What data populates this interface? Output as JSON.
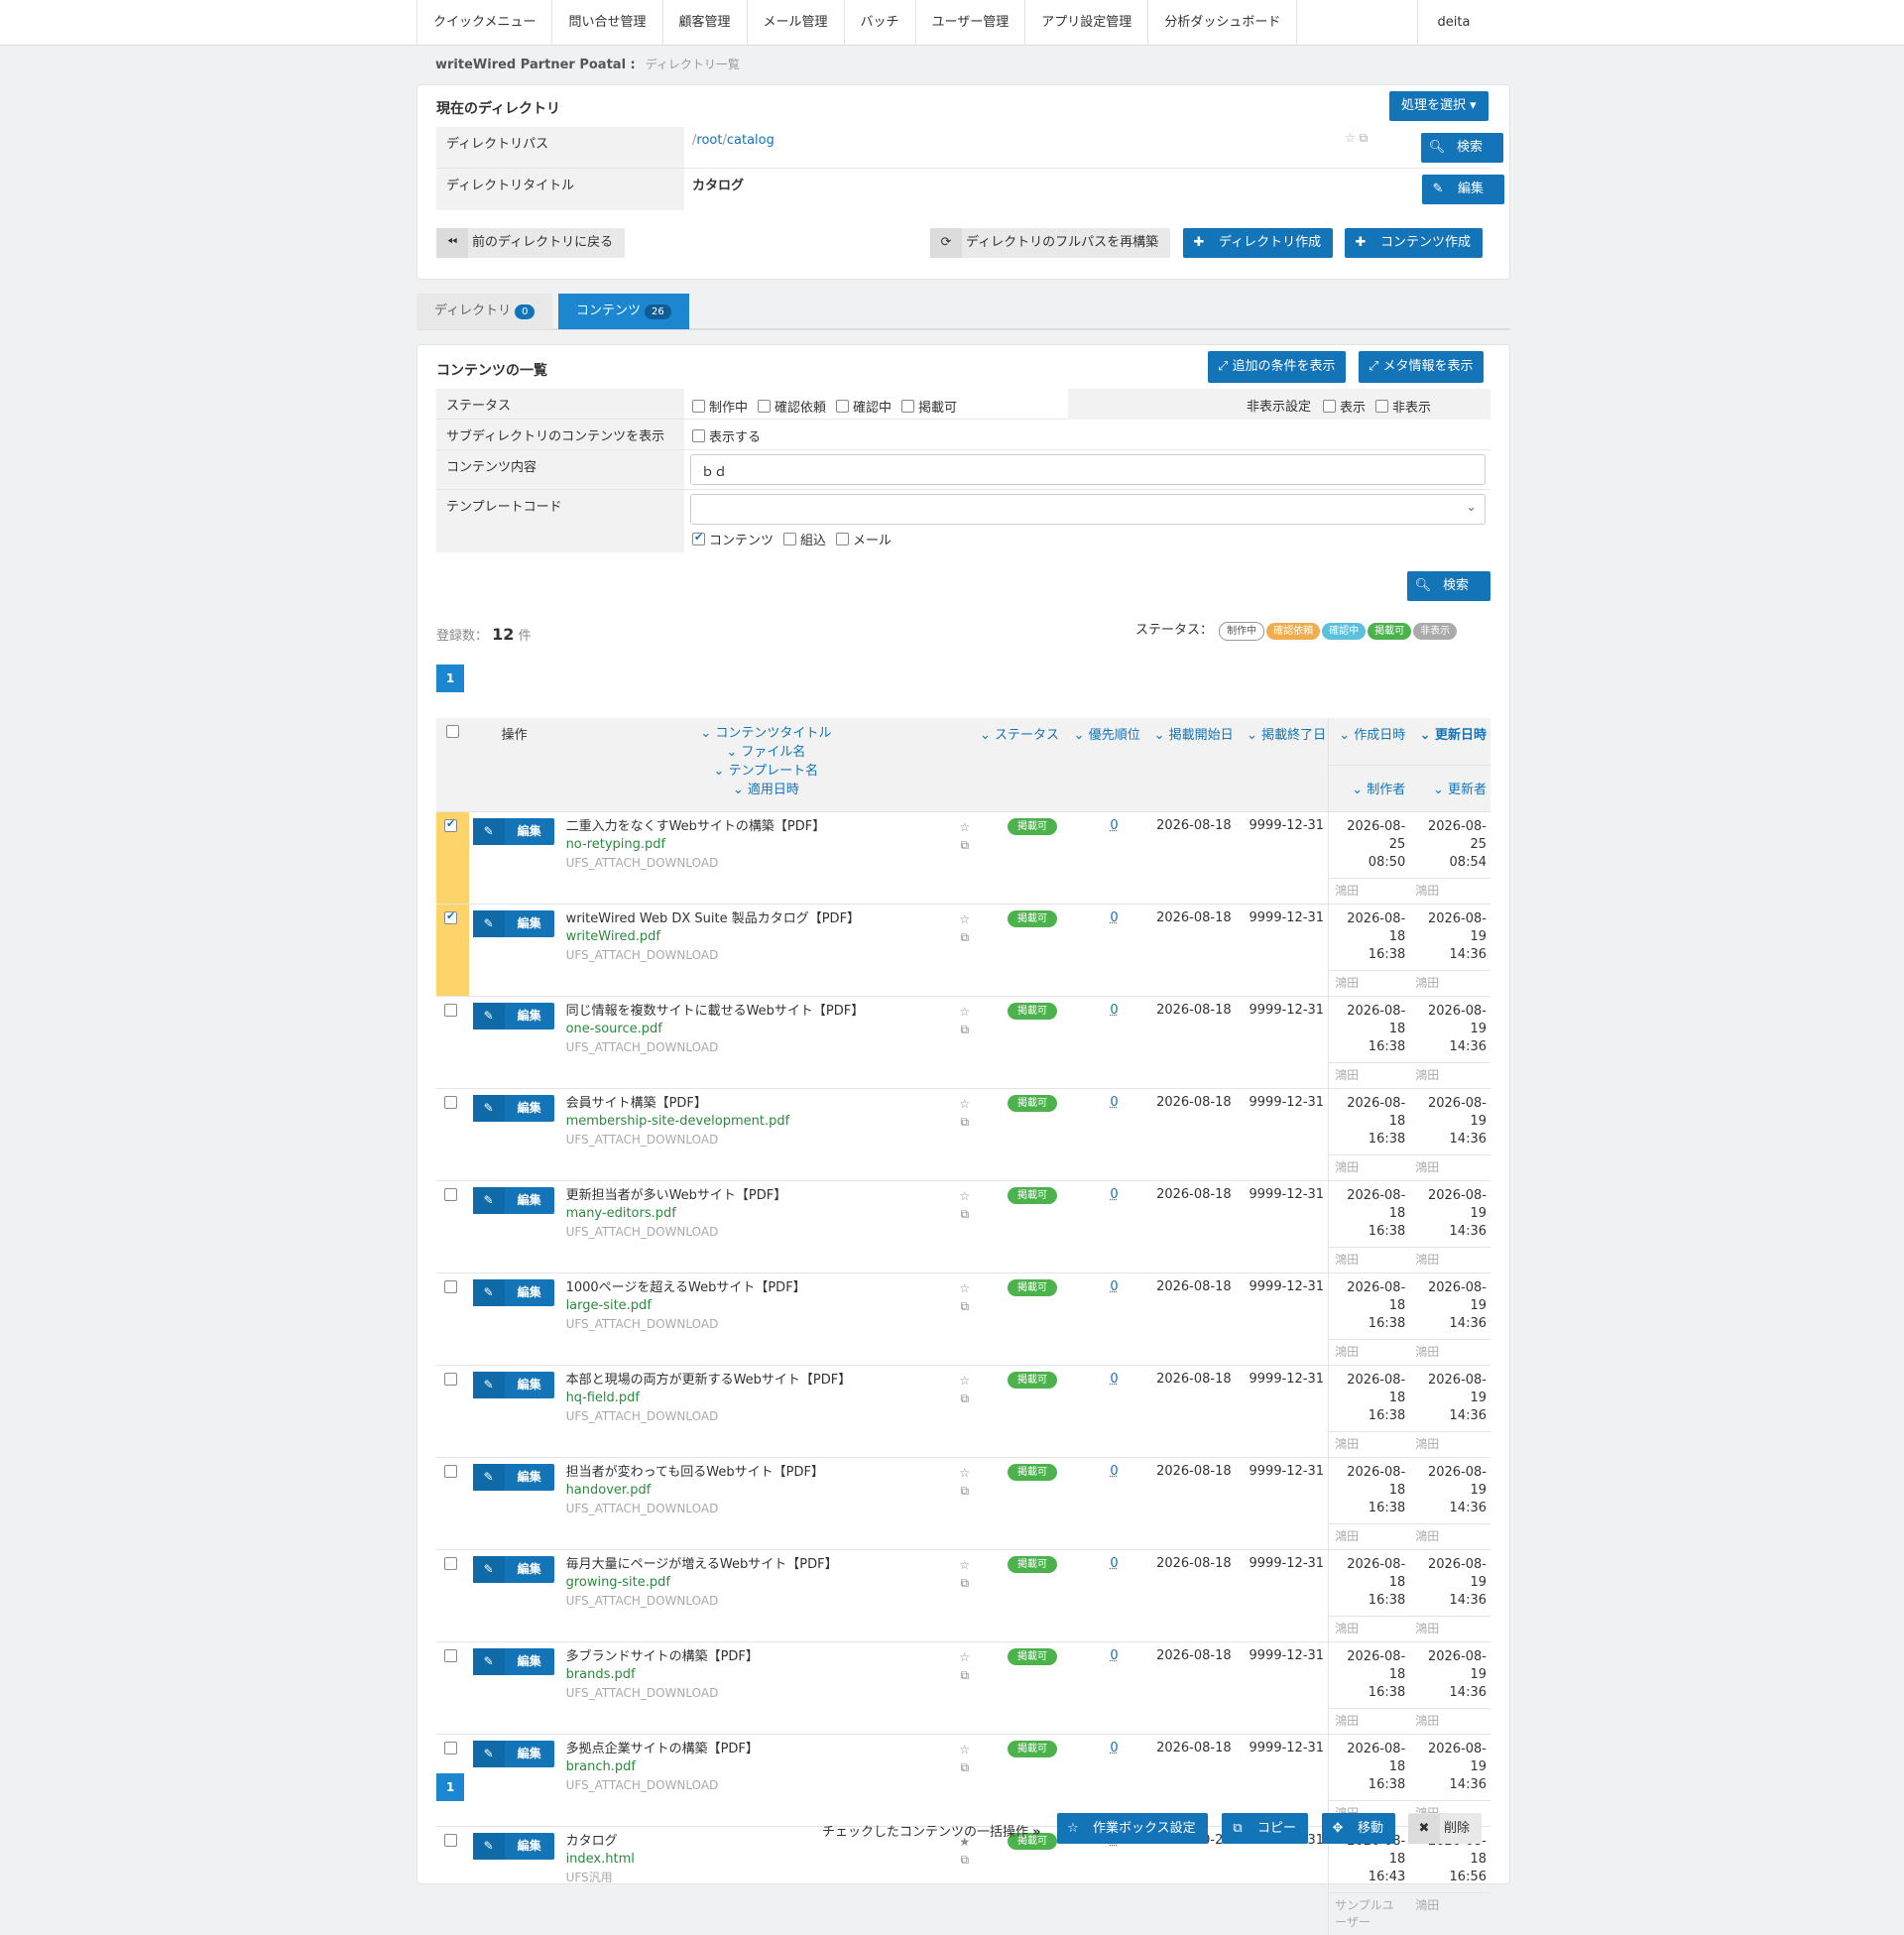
{
  "nav": {
    "items": [
      "クイックメニュー",
      "問い合せ管理",
      "顧客管理",
      "メール管理",
      "バッチ",
      "ユーザー管理",
      "アプリ設定管理",
      "分析ダッシュボード"
    ],
    "user": "deita"
  },
  "breadcrumb": {
    "site": "writeWired Partner Poatal :",
    "page": "ディレクトリ一覧"
  },
  "dir": {
    "title": "現在のディレクトリ",
    "action_btn": "処理を選択 ▾",
    "path_label": "ディレクトリパス",
    "path_sep": "/",
    "path_parts": [
      "root",
      "catalog"
    ],
    "title_label": "ディレクトリタイトル",
    "title_value": "カタログ",
    "search_btn": "検索",
    "edit_btn": "編集",
    "back_btn": "前のディレクトリに戻る",
    "rebuild_btn": "ディレクトリのフルパスを再構築",
    "create_dir_btn": "ディレクトリ作成",
    "create_content_btn": "コンテンツ作成"
  },
  "tabs": {
    "dir_label": "ディレクトリ",
    "dir_count": "0",
    "content_label": "コンテンツ",
    "content_count": "26"
  },
  "list": {
    "title": "コンテンツの一覧",
    "more_btn": "追加の条件を表示",
    "meta_btn": "メタ情報を表示",
    "status_label": "ステータス",
    "status_opts": [
      "制作中",
      "確認依頼",
      "確認中",
      "掲載可"
    ],
    "hide_label": "非表示設定",
    "hide_opts": [
      "表示",
      "非表示"
    ],
    "subdir_label": "サブディレクトリのコンテンツを表示",
    "subdir_opt": "表示する",
    "content_label": "コンテンツ内容",
    "content_value": "ｂｄ",
    "tpl_label": "テンプレートコード",
    "tpl_opts": [
      "コンテンツ",
      "組込",
      "メール"
    ],
    "search_btn": "検索",
    "count_label": "登録数：",
    "count": "12",
    "count_unit": "件",
    "legend_label": "ステータス：",
    "legend": [
      "制作中",
      "確認依頼",
      "確認中",
      "掲載可",
      "非表示"
    ],
    "page": "1"
  },
  "table": {
    "h_op": "操作",
    "h_title": "コンテンツタイトル",
    "h_file": "ファイル名",
    "h_tpl": "テンプレート名",
    "h_applied": "適用日時",
    "h_status": "ステータス",
    "h_prio": "優先順位",
    "h_start": "掲載開始日",
    "h_end": "掲載終了日",
    "h_created": "作成日時",
    "h_updated": "更新日時",
    "h_creator": "制作者",
    "h_updater": "更新者",
    "edit_label": "編集",
    "rows": [
      {
        "checked": true,
        "title": "二重入力をなくすWebサイトの構築【PDF】",
        "file": "no-retyping.pdf",
        "tpl": "UFS_ATTACH_DOWNLOAD",
        "status": "掲載可",
        "prio": "0",
        "start": "2026-08-18",
        "end": "9999-12-31",
        "cd": "2026-08-25",
        "ct": "08:50",
        "ud": "2026-08-25",
        "ut": "08:54",
        "creator": "鴻田",
        "updater": "鴻田"
      },
      {
        "checked": true,
        "title": "writeWired Web DX Suite 製品カタログ【PDF】",
        "file": "writeWired.pdf",
        "tpl": "UFS_ATTACH_DOWNLOAD",
        "status": "掲載可",
        "prio": "0",
        "start": "2026-08-18",
        "end": "9999-12-31",
        "cd": "2026-08-18",
        "ct": "16:38",
        "ud": "2026-08-19",
        "ut": "14:36",
        "creator": "鴻田",
        "updater": "鴻田"
      },
      {
        "checked": false,
        "title": "同じ情報を複数サイトに載せるWebサイト【PDF】",
        "file": "one-source.pdf",
        "tpl": "UFS_ATTACH_DOWNLOAD",
        "status": "掲載可",
        "prio": "0",
        "start": "2026-08-18",
        "end": "9999-12-31",
        "cd": "2026-08-18",
        "ct": "16:38",
        "ud": "2026-08-19",
        "ut": "14:36",
        "creator": "鴻田",
        "updater": "鴻田"
      },
      {
        "checked": false,
        "title": "会員サイト構築【PDF】",
        "file": "membership-site-development.pdf",
        "tpl": "UFS_ATTACH_DOWNLOAD",
        "status": "掲載可",
        "prio": "0",
        "start": "2026-08-18",
        "end": "9999-12-31",
        "cd": "2026-08-18",
        "ct": "16:38",
        "ud": "2026-08-19",
        "ut": "14:36",
        "creator": "鴻田",
        "updater": "鴻田"
      },
      {
        "checked": false,
        "title": "更新担当者が多いWebサイト【PDF】",
        "file": "many-editors.pdf",
        "tpl": "UFS_ATTACH_DOWNLOAD",
        "status": "掲載可",
        "prio": "0",
        "start": "2026-08-18",
        "end": "9999-12-31",
        "cd": "2026-08-18",
        "ct": "16:38",
        "ud": "2026-08-19",
        "ut": "14:36",
        "creator": "鴻田",
        "updater": "鴻田"
      },
      {
        "checked": false,
        "title": "1000ページを超えるWebサイト【PDF】",
        "file": "large-site.pdf",
        "tpl": "UFS_ATTACH_DOWNLOAD",
        "status": "掲載可",
        "prio": "0",
        "start": "2026-08-18",
        "end": "9999-12-31",
        "cd": "2026-08-18",
        "ct": "16:38",
        "ud": "2026-08-19",
        "ut": "14:36",
        "creator": "鴻田",
        "updater": "鴻田"
      },
      {
        "checked": false,
        "title": "本部と現場の両方が更新するWebサイト【PDF】",
        "file": "hq-field.pdf",
        "tpl": "UFS_ATTACH_DOWNLOAD",
        "status": "掲載可",
        "prio": "0",
        "start": "2026-08-18",
        "end": "9999-12-31",
        "cd": "2026-08-18",
        "ct": "16:38",
        "ud": "2026-08-19",
        "ut": "14:36",
        "creator": "鴻田",
        "updater": "鴻田"
      },
      {
        "checked": false,
        "title": "担当者が変わっても回るWebサイト【PDF】",
        "file": "handover.pdf",
        "tpl": "UFS_ATTACH_DOWNLOAD",
        "status": "掲載可",
        "prio": "0",
        "start": "2026-08-18",
        "end": "9999-12-31",
        "cd": "2026-08-18",
        "ct": "16:38",
        "ud": "2026-08-19",
        "ut": "14:36",
        "creator": "鴻田",
        "updater": "鴻田"
      },
      {
        "checked": false,
        "title": "毎月大量にページが増えるWebサイト【PDF】",
        "file": "growing-site.pdf",
        "tpl": "UFS_ATTACH_DOWNLOAD",
        "status": "掲載可",
        "prio": "0",
        "start": "2026-08-18",
        "end": "9999-12-31",
        "cd": "2026-08-18",
        "ct": "16:38",
        "ud": "2026-08-19",
        "ut": "14:36",
        "creator": "鴻田",
        "updater": "鴻田"
      },
      {
        "checked": false,
        "title": "多ブランドサイトの構築【PDF】",
        "file": "brands.pdf",
        "tpl": "UFS_ATTACH_DOWNLOAD",
        "status": "掲載可",
        "prio": "0",
        "start": "2026-08-18",
        "end": "9999-12-31",
        "cd": "2026-08-18",
        "ct": "16:38",
        "ud": "2026-08-19",
        "ut": "14:36",
        "creator": "鴻田",
        "updater": "鴻田"
      },
      {
        "checked": false,
        "title": "多拠点企業サイトの構築【PDF】",
        "file": "branch.pdf",
        "tpl": "UFS_ATTACH_DOWNLOAD",
        "status": "掲載可",
        "prio": "0",
        "start": "2026-08-18",
        "end": "9999-12-31",
        "cd": "2026-08-18",
        "ct": "16:38",
        "ud": "2026-08-19",
        "ut": "14:36",
        "creator": "鴻田",
        "updater": "鴻田"
      },
      {
        "checked": false,
        "title": "カタログ",
        "file": "index.html",
        "tpl": "UFS汎用",
        "status": "掲載可",
        "prio": "0",
        "start": "2018-10-20",
        "end": "9999-12-31",
        "cd": "2026-08-18",
        "ct": "16:43",
        "ud": "2026-08-18",
        "ut": "16:56",
        "creator": "サンプルユーザー",
        "updater": "鴻田",
        "starred": true
      }
    ]
  },
  "bulk": {
    "label": "チェックしたコンテンツの一括操作",
    "workbox": "作業ボックス設定",
    "copy": "コピー",
    "move": "移動",
    "delete": "削除"
  }
}
